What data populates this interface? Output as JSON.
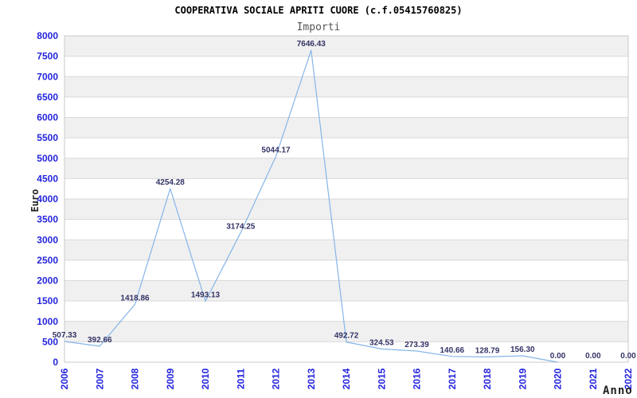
{
  "chart_data": {
    "type": "line",
    "title": "COOPERATIVA SOCIALE APRITI CUORE (c.f.05415760825)",
    "subtitle": "Importi",
    "xlabel": "Anno",
    "ylabel": "Euro",
    "categories": [
      "2006",
      "2007",
      "2008",
      "2009",
      "2010",
      "2011",
      "2012",
      "2013",
      "2014",
      "2015",
      "2016",
      "2017",
      "2018",
      "2019",
      "2020",
      "2021",
      "2022"
    ],
    "series": [
      {
        "name": "Importi",
        "values": [
          507.33,
          392.66,
          1418.86,
          4254.28,
          1493.13,
          3174.25,
          5044.17,
          7646.43,
          492.72,
          324.53,
          273.39,
          140.66,
          128.79,
          156.3,
          0.0,
          0.0,
          0.0
        ],
        "labels": [
          "507.33",
          "392.66",
          "1418.86",
          "4254.28",
          "1493.13",
          "3174.25",
          "5044.17",
          "7646.43",
          "492.72",
          "324.53",
          "273.39",
          "140.66",
          "128.79",
          "156.30",
          "0.00",
          "0.00",
          "0.00"
        ],
        "line_ends_at_category": "2020"
      }
    ],
    "ylim": [
      0,
      8000
    ],
    "ytick_step": 500,
    "grid": "horizontal-bands-alternating",
    "legend": "none",
    "colors": {
      "line": "#85b5e8",
      "tick_label": "#2525dd",
      "value_label": "#333366",
      "band": "#f0f0f0",
      "gridline": "#d9d9d9",
      "plot_border": "#c8c8c8",
      "title": "#000000",
      "subtitle": "#565656",
      "axis_title": "#222222",
      "background": "#ffffff"
    }
  }
}
